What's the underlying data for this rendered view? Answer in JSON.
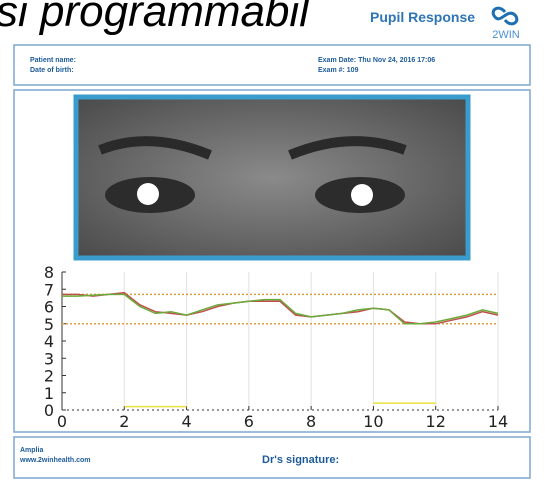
{
  "header": {
    "overlay_text": "si programmabil",
    "title": "Pupil Response",
    "logo": "2WIN"
  },
  "patient": {
    "name_label": "Patient name:",
    "dob_label": "Date of birth:",
    "exam_date": "Exam Date: Thu Nov 24, 2016 17:06",
    "exam_no": "Exam #: 109"
  },
  "chart_data": {
    "type": "line",
    "x": [
      0,
      0.5,
      1,
      1.5,
      2,
      2.5,
      3,
      3.5,
      4,
      4.5,
      5,
      5.5,
      6,
      6.5,
      7,
      7.5,
      8,
      8.5,
      9,
      9.5,
      10,
      10.5,
      11,
      11.5,
      12,
      12.5,
      13,
      13.5,
      14
    ],
    "series": [
      {
        "color": "#c0504d",
        "values": [
          6.7,
          6.7,
          6.6,
          6.7,
          6.8,
          6.1,
          5.7,
          5.6,
          5.5,
          5.7,
          6.0,
          6.2,
          6.3,
          6.3,
          6.3,
          5.5,
          5.4,
          5.5,
          5.6,
          5.7,
          5.9,
          5.8,
          5.1,
          5.0,
          5.0,
          5.2,
          5.4,
          5.7,
          5.5
        ]
      },
      {
        "color": "#6aaa3a",
        "values": [
          6.6,
          6.6,
          6.65,
          6.7,
          6.7,
          6.0,
          5.6,
          5.7,
          5.5,
          5.8,
          6.1,
          6.2,
          6.3,
          6.4,
          6.4,
          5.6,
          5.4,
          5.5,
          5.6,
          5.8,
          5.9,
          5.8,
          5.0,
          5.0,
          5.1,
          5.3,
          5.5,
          5.8,
          5.6
        ]
      },
      {
        "color": "#e8e040",
        "values": [
          null,
          null,
          null,
          null,
          0.2,
          0.2,
          0.2,
          0.2,
          0.2,
          null,
          null,
          null,
          null,
          null,
          null,
          null,
          null,
          null,
          null,
          null,
          0.4,
          0.4,
          0.4,
          0.4,
          0.4,
          null,
          null,
          null,
          null
        ]
      }
    ],
    "reference_lines": [
      6.7,
      5.0
    ],
    "reference_color": "#d9a040",
    "xlim": [
      0,
      14
    ],
    "ylim": [
      0,
      8
    ],
    "xticks": [
      0,
      2,
      4,
      6,
      8,
      10,
      12,
      14
    ],
    "yticks": [
      0,
      1,
      2,
      3,
      4,
      5,
      6,
      7,
      8
    ],
    "grid": true
  },
  "footer": {
    "company": "Amplia",
    "website": "www.2winhealth.com",
    "signature": "Dr's signature:"
  }
}
